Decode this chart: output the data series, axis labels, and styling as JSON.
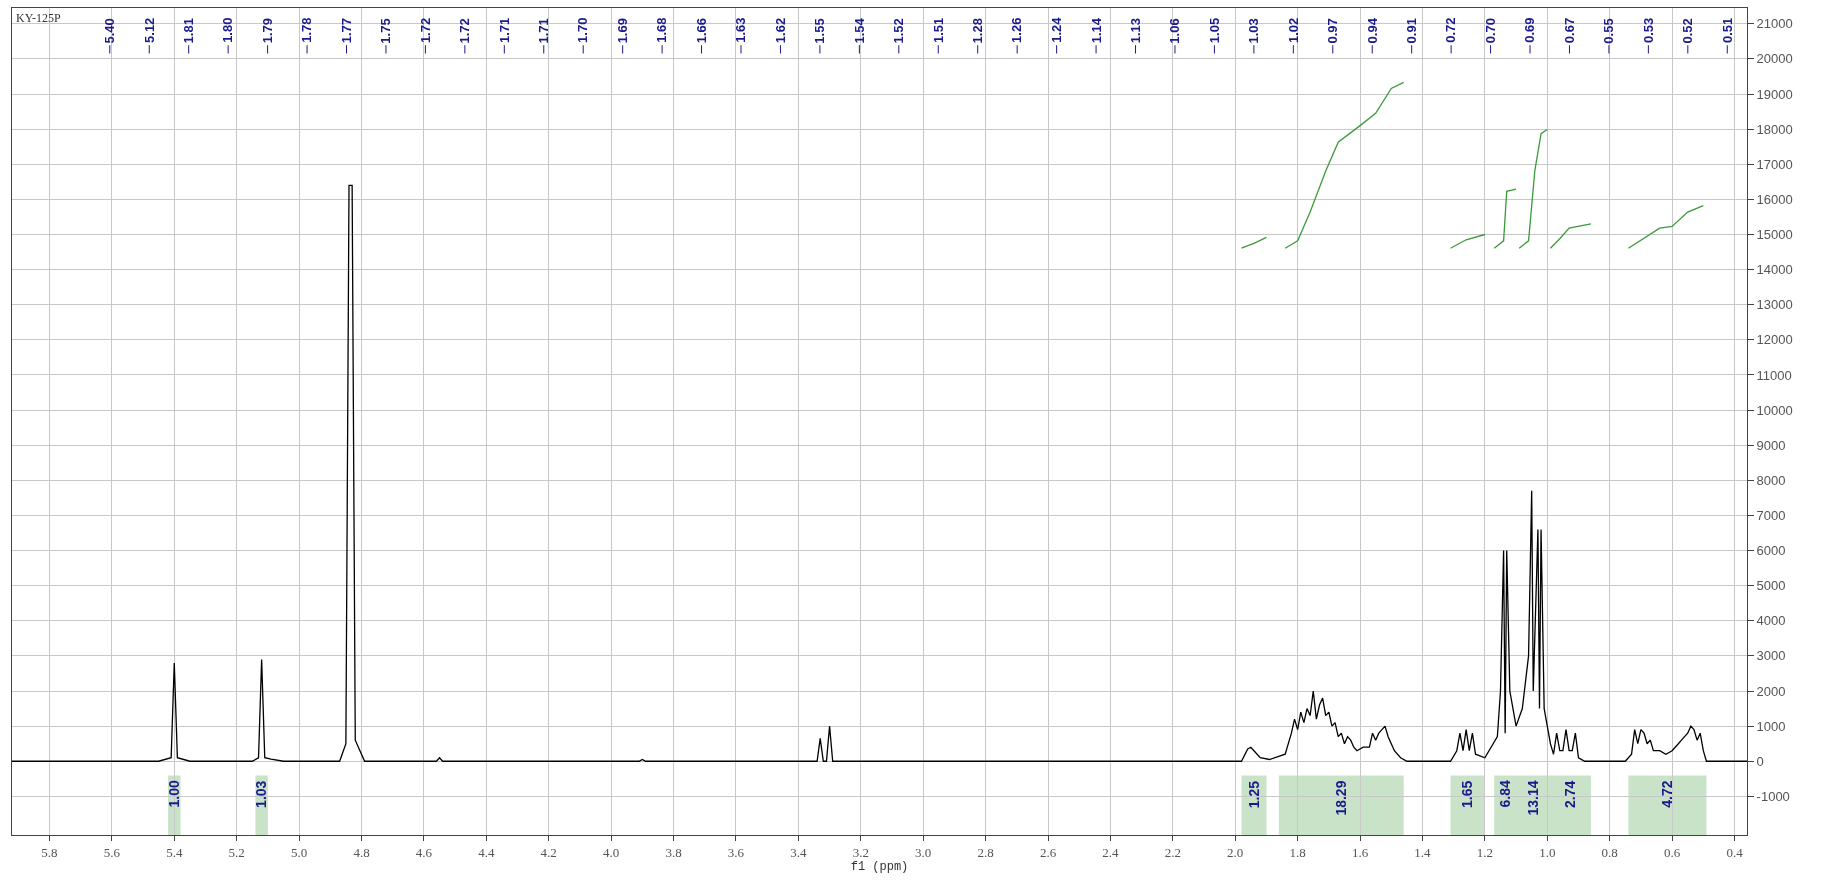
{
  "chart_data": {
    "type": "line",
    "xlabel": "f1 (ppm)",
    "xlim": [
      5.92,
      0.36
    ],
    "xticks": [
      5.8,
      5.6,
      5.4,
      5.2,
      {
        "value": 5,
        "label": "5.0"
      },
      4.8,
      4.6,
      4.4,
      4.2,
      {
        "value": 4,
        "label": "4.0"
      },
      3.8,
      3.6,
      3.4,
      3.2,
      {
        "value": 3,
        "label": "3.0"
      },
      2.8,
      2.6,
      2.4,
      2.2,
      {
        "value": 2,
        "label": "2.0"
      },
      1.8,
      1.6,
      1.4,
      1.2,
      {
        "value": 1,
        "label": "1.0"
      },
      0.8,
      0.6,
      0.4
    ],
    "ylim": [
      -2100,
      21450
    ],
    "yticks": [
      -1000,
      0,
      1000,
      2000,
      3000,
      4000,
      5000,
      6000,
      7000,
      8000,
      9000,
      10000,
      11000,
      12000,
      13000,
      14000,
      15000,
      16000,
      17000,
      18000,
      19000,
      20000,
      21000
    ],
    "grid": true,
    "series": [
      {
        "color": "#000000",
        "x": [
          5.92,
          5.45,
          5.41,
          5.4,
          5.39,
          5.35,
          5.15,
          5.13,
          5.12,
          5.11,
          5.09,
          5.05,
          4.87,
          4.85,
          4.84,
          4.83,
          4.82,
          4.79,
          4.56,
          4.55,
          4.54,
          3.91,
          3.9,
          3.89,
          3.34,
          3.33,
          3.32,
          3.31,
          3.3,
          3.29,
          1.98,
          1.96,
          1.95,
          1.94,
          1.92,
          1.89,
          1.84,
          1.82,
          1.81,
          1.8,
          1.79,
          1.78,
          1.77,
          1.76,
          1.75,
          1.74,
          1.73,
          1.72,
          1.71,
          1.7,
          1.69,
          1.68,
          1.67,
          1.66,
          1.65,
          1.64,
          1.63,
          1.62,
          1.61,
          1.59,
          1.57,
          1.56,
          1.55,
          1.54,
          1.53,
          1.52,
          1.51,
          1.5,
          1.49,
          1.47,
          1.45,
          1.31,
          1.29,
          1.28,
          1.27,
          1.26,
          1.25,
          1.24,
          1.23,
          1.2,
          1.16,
          1.15,
          1.14,
          1.135,
          1.13,
          1.12,
          1.1,
          1.08,
          1.06,
          1.05,
          1.045,
          1.03,
          1.025,
          1.02,
          1.01,
          0.99,
          0.98,
          0.97,
          0.96,
          0.95,
          0.94,
          0.93,
          0.92,
          0.91,
          0.9,
          0.88,
          0.75,
          0.73,
          0.72,
          0.71,
          0.7,
          0.69,
          0.68,
          0.67,
          0.66,
          0.64,
          0.62,
          0.6,
          0.58,
          0.57,
          0.56,
          0.55,
          0.54,
          0.53,
          0.52,
          0.51,
          0.5,
          0.49,
          0.36
        ],
        "values": [
          0,
          0,
          100,
          2800,
          100,
          0,
          0,
          100,
          2900,
          100,
          60,
          0,
          0,
          500,
          16400,
          16400,
          600,
          0,
          0,
          100,
          0,
          0,
          50,
          0,
          0,
          650,
          0,
          0,
          1000,
          0,
          0,
          350,
          400,
          300,
          100,
          50,
          200,
          800,
          1200,
          900,
          1400,
          1100,
          1500,
          1300,
          2000,
          1200,
          1600,
          1800,
          1300,
          1400,
          1000,
          1100,
          700,
          800,
          500,
          700,
          600,
          400,
          300,
          400,
          400,
          800,
          600,
          800,
          900,
          1000,
          700,
          500,
          300,
          100,
          0,
          0,
          300,
          800,
          300,
          900,
          300,
          800,
          200,
          100,
          700,
          2000,
          6000,
          800,
          6000,
          2000,
          1000,
          1500,
          3000,
          7700,
          2000,
          6600,
          1500,
          6600,
          1500,
          500,
          200,
          800,
          300,
          300,
          900,
          300,
          300,
          800,
          100,
          0,
          0,
          200,
          900,
          500,
          900,
          800,
          500,
          600,
          300,
          300,
          200,
          300,
          500,
          600,
          700,
          800,
          1000,
          900,
          600,
          800,
          300,
          0,
          0
        ]
      },
      {
        "color": "#3c9a3c",
        "x": [
          1.98,
          1.94,
          1.9
        ],
        "values": [
          14610,
          14750,
          14920
        ]
      },
      {
        "color": "#3c9a3c",
        "x": [
          1.84,
          1.8,
          1.76,
          1.71,
          1.67,
          1.6,
          1.55,
          1.5,
          1.46
        ],
        "values": [
          14610,
          14820,
          15640,
          16810,
          17630,
          18100,
          18450,
          19160,
          19330
        ]
      },
      {
        "color": "#3c9a3c",
        "x": [
          1.31,
          1.26,
          1.2
        ],
        "values": [
          14610,
          14850,
          15000
        ]
      },
      {
        "color": "#3c9a3c",
        "x": [
          1.17,
          1.14,
          1.13,
          1.1
        ],
        "values": [
          14610,
          14820,
          16230,
          16290
        ]
      },
      {
        "color": "#3c9a3c",
        "x": [
          1.09,
          1.06,
          1.04,
          1.02,
          1.0
        ],
        "values": [
          14610,
          14820,
          16810,
          17870,
          17990
        ]
      },
      {
        "color": "#3c9a3c",
        "x": [
          0.99,
          0.96,
          0.93,
          0.86
        ],
        "values": [
          14610,
          14880,
          15180,
          15300
        ]
      },
      {
        "color": "#3c9a3c",
        "x": [
          0.74,
          0.64,
          0.6,
          0.55,
          0.5
        ],
        "values": [
          14610,
          15180,
          15230,
          15640,
          15820
        ]
      }
    ],
    "annotations": [
      "KY-125P",
      "5.40",
      "5.12",
      "1.81",
      "1.80",
      "1.79",
      "1.78",
      "1.77",
      "1.75",
      "1.72",
      "1.72",
      "1.71",
      "1.71",
      "1.70",
      "1.69",
      "1.68",
      "1.66",
      "1.63",
      "1.62",
      "1.55",
      "1.54",
      "1.52",
      "1.51",
      "1.28",
      "1.26",
      "1.24",
      "1.14",
      "1.13",
      "1.06",
      "1.05",
      "1.03",
      "1.02",
      "0.97",
      "0.94",
      "0.91",
      "0.72",
      "0.70",
      "0.69",
      "0.67",
      "0.55",
      "0.53",
      "0.52",
      "0.51"
    ],
    "bands": [
      {
        "axis": "x",
        "from": 5.42,
        "to": 5.38,
        "label": "1.00",
        "color": "#3c9a3c"
      },
      {
        "axis": "x",
        "from": 5.14,
        "to": 5.1,
        "label": "1.03",
        "color": "#3c9a3c"
      },
      {
        "axis": "x",
        "from": 1.98,
        "to": 1.9,
        "label": "1.25",
        "color": "#3c9a3c"
      },
      {
        "axis": "x",
        "from": 1.86,
        "to": 1.46,
        "label": "18.29",
        "color": "#3c9a3c"
      },
      {
        "axis": "x",
        "from": 1.31,
        "to": 1.2,
        "label": "1.65",
        "color": "#3c9a3c"
      },
      {
        "axis": "x",
        "from": 1.17,
        "to": 1.1,
        "label": "6.84",
        "color": "#3c9a3c"
      },
      {
        "axis": "x",
        "from": 1.1,
        "to": 0.99,
        "label": "13.14",
        "color": "#3c9a3c"
      },
      {
        "axis": "x",
        "from": 0.99,
        "to": 0.86,
        "label": "2.74",
        "color": "#3c9a3c"
      },
      {
        "axis": "x",
        "from": 0.74,
        "to": 0.49,
        "label": "4.72",
        "color": "#3c9a3c"
      }
    ]
  }
}
